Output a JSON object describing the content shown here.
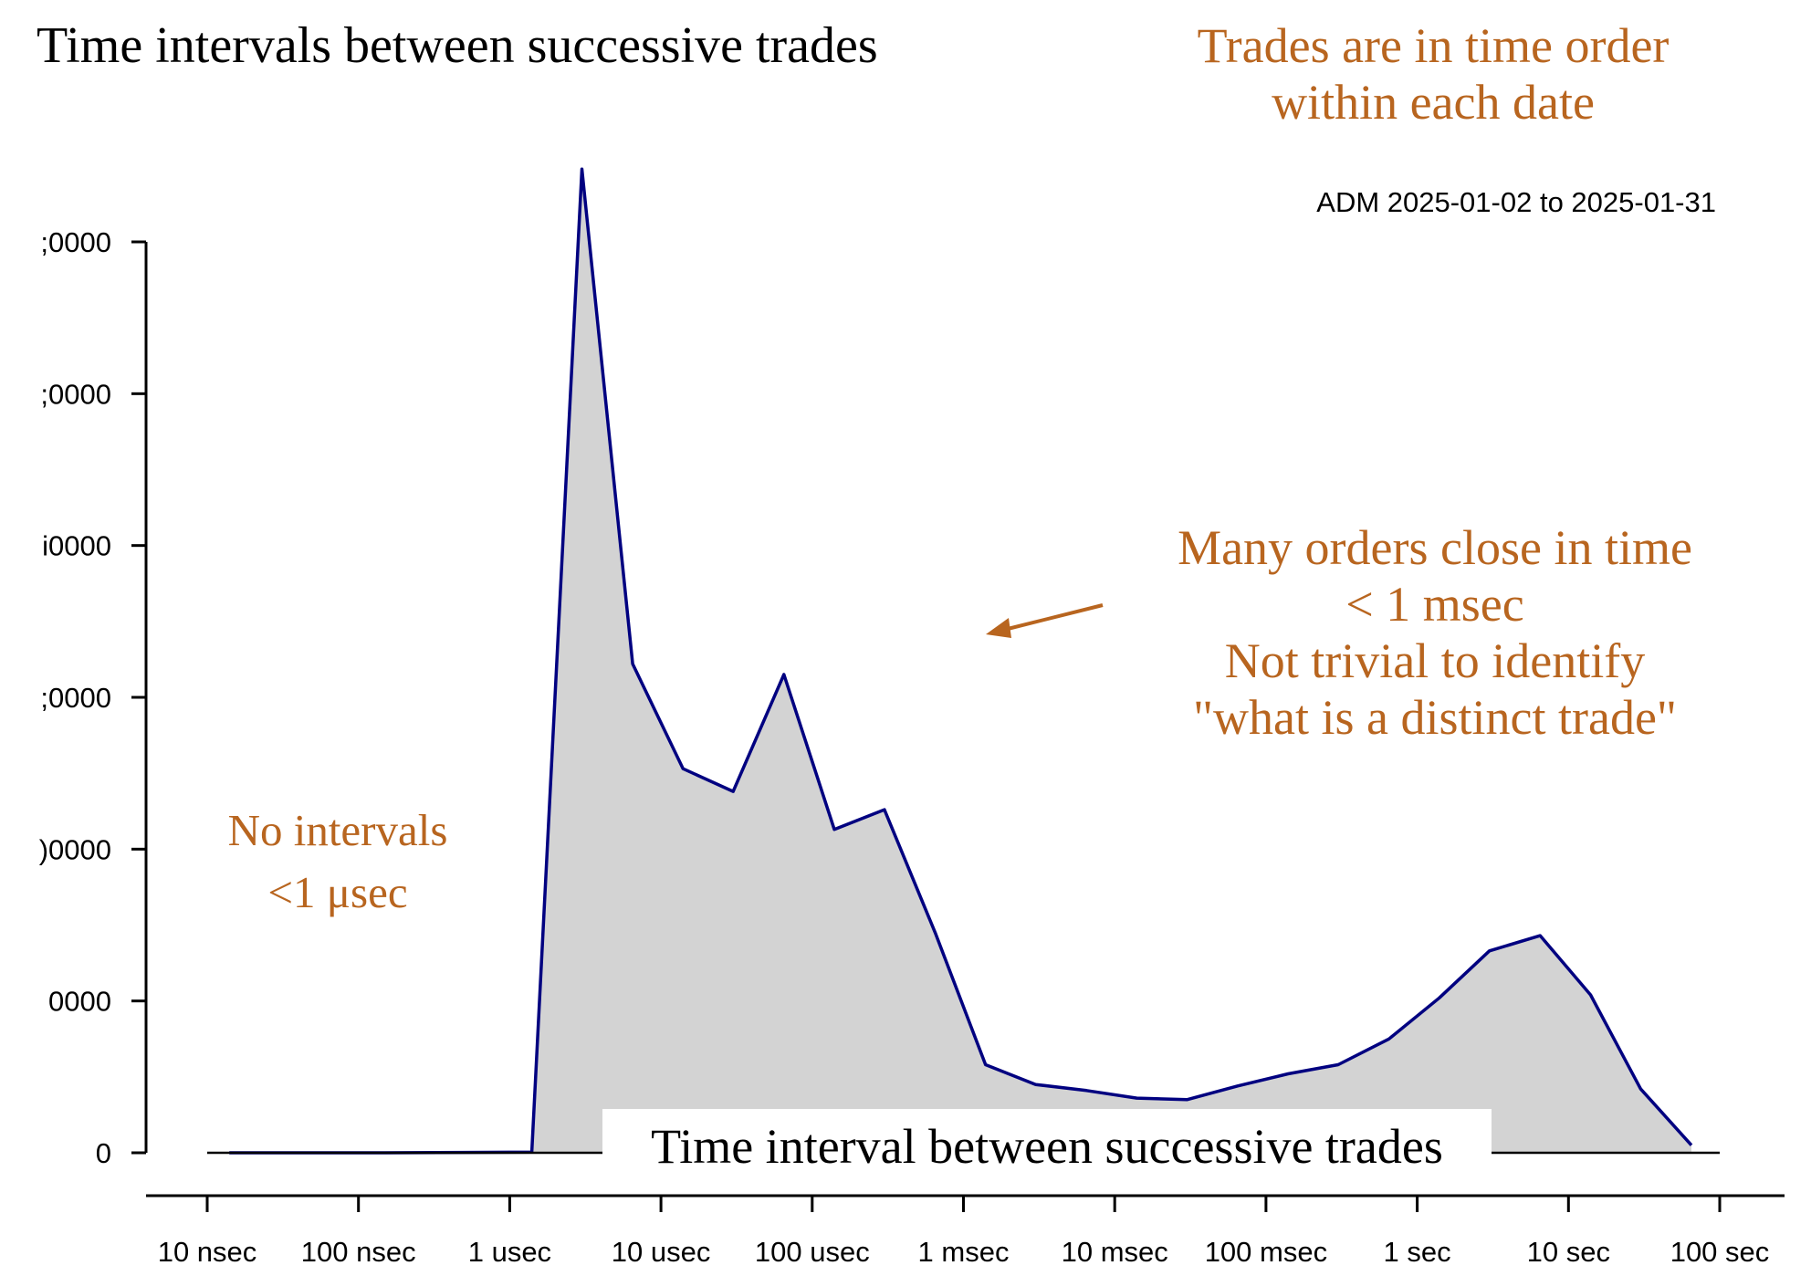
{
  "chart_data": {
    "type": "area",
    "title": "Time intervals between successive trades",
    "subtitle": "ADM 2025-01-02 to 2025-01-31",
    "xlabel": "Time interval between successive trades",
    "ylabel": "",
    "x_scale": "log10",
    "x_ticks": [
      {
        "value": 1e-08,
        "label": "10 nsec"
      },
      {
        "value": 1e-07,
        "label": "100 nsec"
      },
      {
        "value": 1e-06,
        "label": "1 usec"
      },
      {
        "value": 1e-05,
        "label": "10 usec"
      },
      {
        "value": 0.0001,
        "label": "100 usec"
      },
      {
        "value": 0.001,
        "label": "1 msec"
      },
      {
        "value": 0.01,
        "label": "10 msec"
      },
      {
        "value": 0.1,
        "label": "100 msec"
      },
      {
        "value": 1,
        "label": "1 sec"
      },
      {
        "value": 10,
        "label": "10 sec"
      },
      {
        "value": 100,
        "label": "100 sec"
      }
    ],
    "y_ticks": [
      {
        "value": 0,
        "label": "0"
      },
      {
        "value": 10000,
        "label": "0000"
      },
      {
        "value": 20000,
        "label": ")0000"
      },
      {
        "value": 30000,
        "label": ";0000"
      },
      {
        "value": 40000,
        "label": "i0000"
      },
      {
        "value": 50000,
        "label": ";0000"
      },
      {
        "value": 60000,
        "label": ";0000"
      }
    ],
    "ylim": [
      0,
      60000
    ],
    "xlim": [
      1e-08,
      100
    ],
    "grid": false,
    "fill_color": "#d3d3d3",
    "line_color": "#000080",
    "series": [
      {
        "x": [
          1.4e-08,
          1.5e-07,
          1.4e-06,
          3e-06,
          6.5e-06,
          1.4e-05,
          3e-05,
          6.5e-05,
          0.00014,
          0.0003,
          0.00065,
          0.0014,
          0.003,
          0.0065,
          0.014,
          0.03,
          0.065,
          0.14,
          0.3,
          0.65,
          1.4,
          3.0,
          6.5,
          14,
          30,
          65
        ],
        "y": [
          0,
          0,
          50,
          64800,
          32200,
          25300,
          23800,
          31500,
          21300,
          22600,
          14500,
          5800,
          4500,
          4100,
          3600,
          3500,
          4400,
          5200,
          5800,
          7500,
          10200,
          13300,
          14300,
          10400,
          4200,
          500
        ]
      }
    ]
  },
  "annotations": {
    "trades_order": [
      "Trades are in time order",
      "within each date"
    ],
    "many_orders": [
      "Many orders close in time",
      "< 1 msec",
      "Not trivial to identify",
      "\"what is a distinct trade\""
    ],
    "no_intervals": [
      "No intervals",
      "<1 μsec"
    ],
    "annotation_color": "#b8651f"
  }
}
